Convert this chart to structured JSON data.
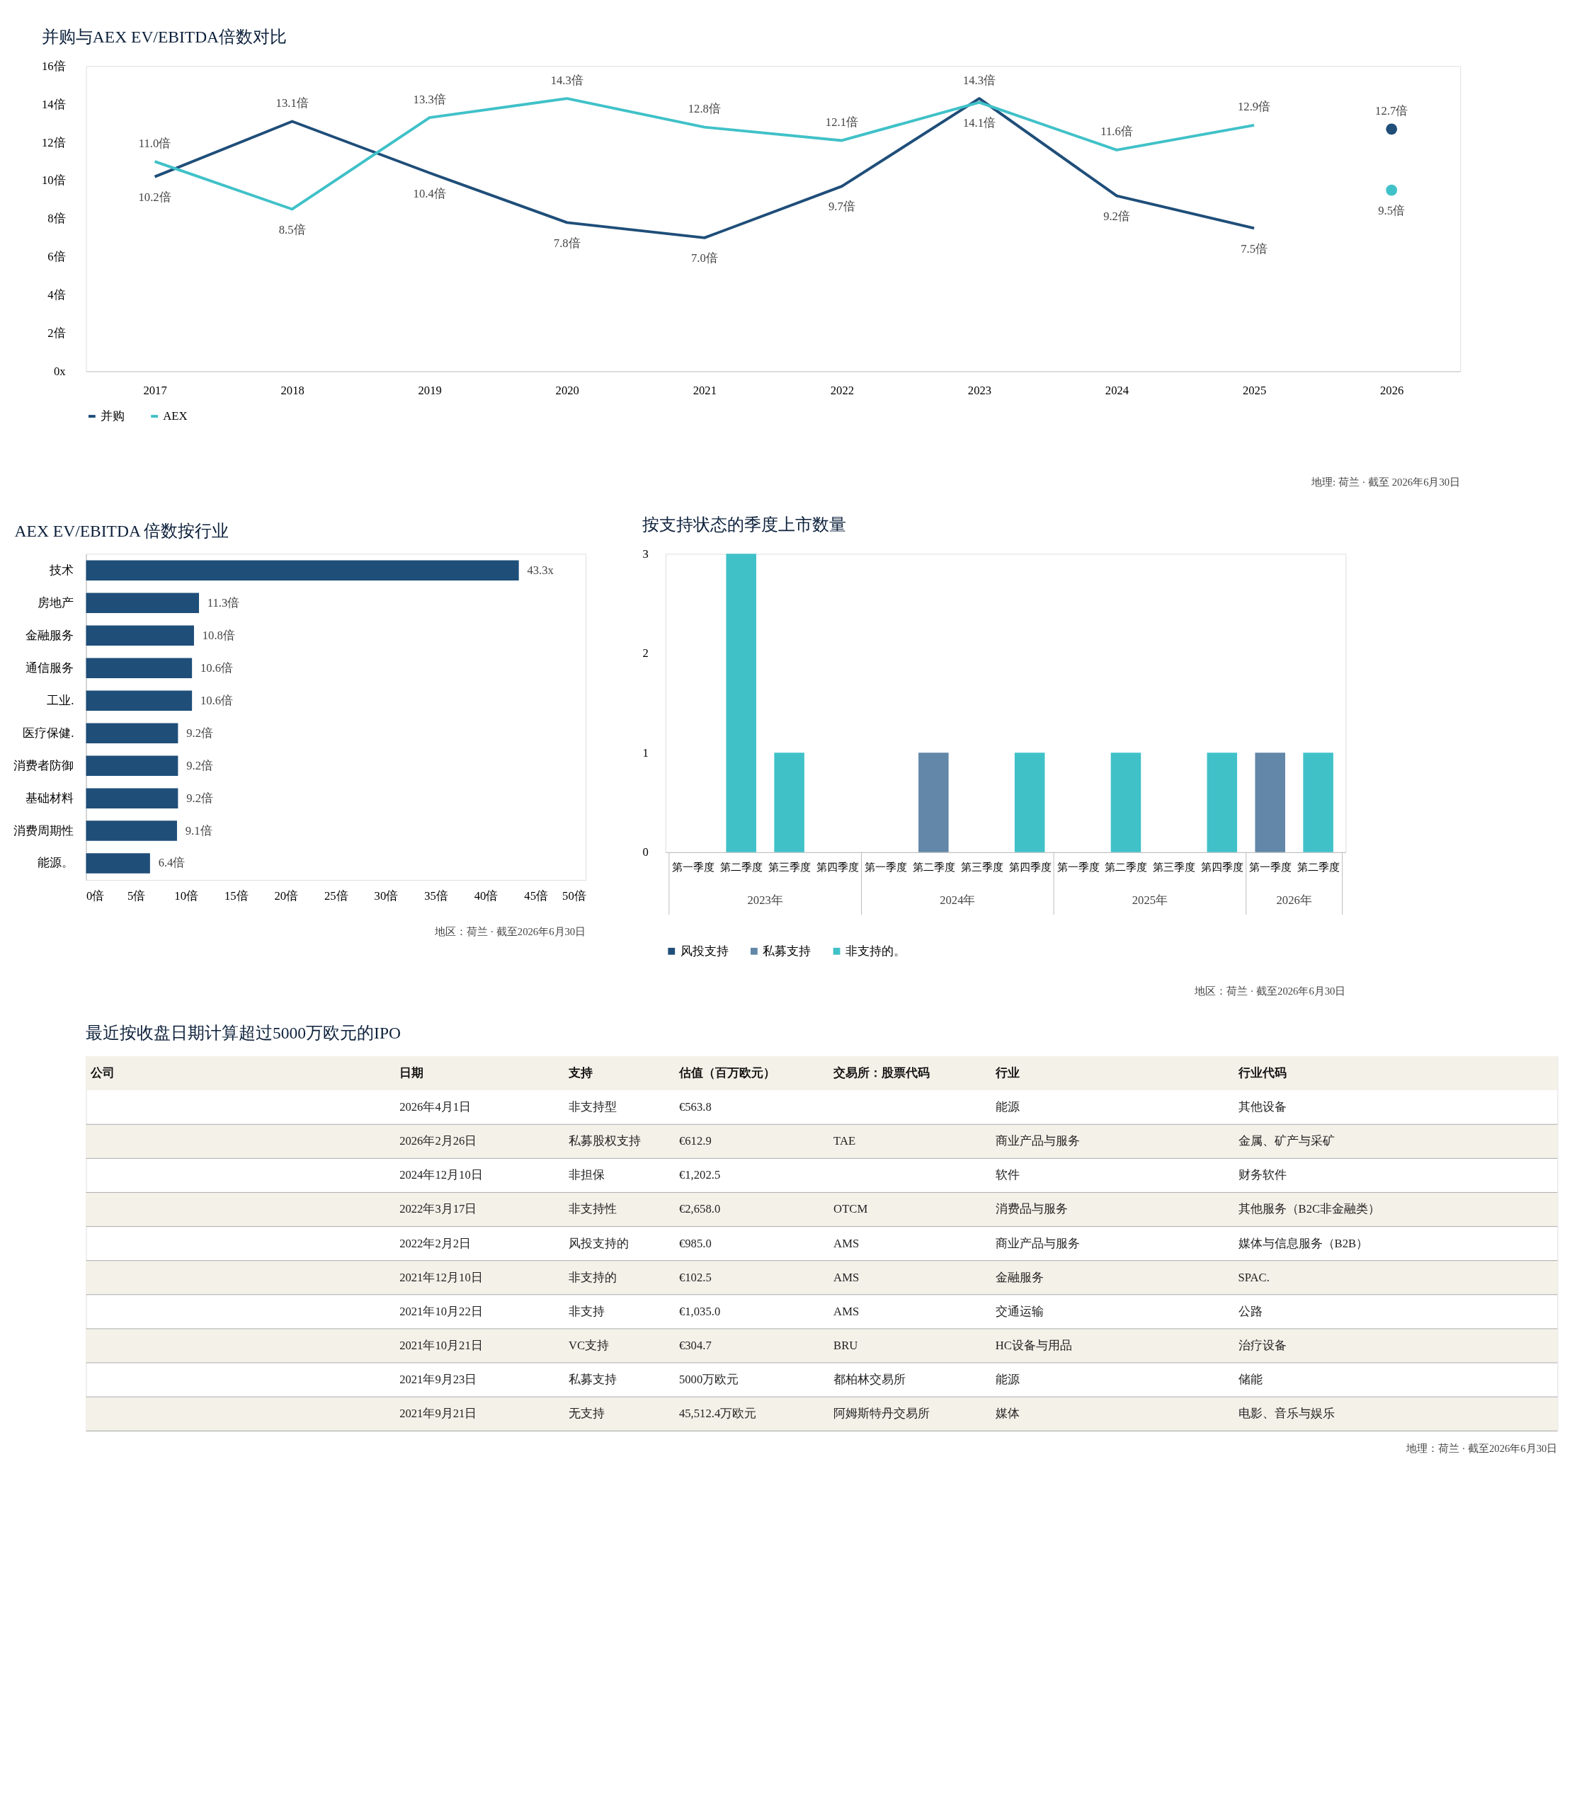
{
  "chart_data": [
    {
      "type": "line",
      "title": "并购与AEX EV/EBITDA倍数对比",
      "categories": [
        "2017",
        "2018",
        "2019",
        "2020",
        "2021",
        "2022",
        "2023",
        "2024",
        "2025",
        "2026"
      ],
      "series": [
        {
          "name": "并购",
          "color": "#1f4e79",
          "values": [
            10.2,
            13.1,
            10.4,
            7.8,
            7.0,
            9.7,
            14.3,
            9.2,
            7.5,
            null
          ],
          "value_labels": [
            "10.2倍",
            "13.1倍",
            "10.4倍",
            "7.8倍",
            "7.0倍",
            "9.7倍",
            "14.3倍",
            "9.2倍",
            "7.5倍",
            null
          ]
        },
        {
          "name": "AEX",
          "color": "#40c1c8",
          "values": [
            11.0,
            8.5,
            13.3,
            14.3,
            12.8,
            12.1,
            14.1,
            11.6,
            12.9,
            null
          ],
          "value_labels": [
            "11.0倍",
            "8.5倍",
            "13.3倍",
            "14.3倍",
            "12.8倍",
            "12.1倍",
            "14.1倍",
            "11.6倍",
            "12.9倍",
            null
          ]
        },
        {
          "type": "scatter",
          "marker": "circle",
          "color": "#1f4e79",
          "values": [
            null,
            null,
            null,
            null,
            null,
            null,
            null,
            null,
            null,
            12.7
          ],
          "value_labels": [
            null,
            null,
            null,
            null,
            null,
            null,
            null,
            null,
            null,
            "12.7倍"
          ]
        },
        {
          "type": "scatter",
          "marker": "circle",
          "color": "#40c1c8",
          "values": [
            null,
            null,
            null,
            null,
            null,
            null,
            null,
            null,
            null,
            9.5
          ],
          "value_labels": [
            null,
            null,
            null,
            null,
            null,
            null,
            null,
            null,
            null,
            "9.5倍"
          ]
        }
      ],
      "ylim": [
        0,
        16
      ],
      "yticks": [
        {
          "value": 0,
          "label": "0x"
        },
        {
          "value": 2,
          "label": "2倍"
        },
        {
          "value": 4,
          "label": "4倍"
        },
        {
          "value": 6,
          "label": "6倍"
        },
        {
          "value": 8,
          "label": "8倍"
        },
        {
          "value": 10,
          "label": "10倍"
        },
        {
          "value": 12,
          "label": "12倍"
        },
        {
          "value": 14,
          "label": "14倍"
        },
        {
          "value": 16,
          "label": "16倍"
        }
      ],
      "legend": "bottom",
      "annotations": [
        "地理: 荷兰 · 截至 2026年6月30日"
      ]
    },
    {
      "type": "bar",
      "orientation": "horizontal",
      "title": "AEX EV/EBITDA 倍数按行业",
      "categories": [
        "技术",
        "房地产",
        "金融服务",
        "通信服务",
        "工业.",
        "医疗保健.",
        "消费者防御",
        "基础材料",
        "消费周期性",
        "能源。"
      ],
      "values": [
        43.3,
        11.3,
        10.8,
        10.6,
        10.6,
        9.2,
        9.2,
        9.2,
        9.1,
        6.4
      ],
      "value_labels": [
        "43.3x",
        "11.3倍",
        "10.8倍",
        "10.6倍",
        "10.6倍",
        "9.2倍",
        "9.2倍",
        "9.2倍",
        "9.1倍",
        "6.4倍"
      ],
      "color": "#1f4e79",
      "xlim": [
        0,
        50
      ],
      "xticks": [
        {
          "value": 0,
          "label": "0倍"
        },
        {
          "value": 5,
          "label": "5倍"
        },
        {
          "value": 10,
          "label": "10倍"
        },
        {
          "value": 15,
          "label": "15倍"
        },
        {
          "value": 20,
          "label": "20倍"
        },
        {
          "value": 25,
          "label": "25倍"
        },
        {
          "value": 30,
          "label": "30倍"
        },
        {
          "value": 35,
          "label": "35倍"
        },
        {
          "value": 40,
          "label": "40倍"
        },
        {
          "value": 45,
          "label": "45倍"
        },
        {
          "value": 50,
          "label": "50倍"
        }
      ],
      "annotations": [
        "地区：荷兰 · 截至2026年6月30日"
      ]
    },
    {
      "type": "bar",
      "stacked": true,
      "title": "按支持状态的季度上市数量",
      "categories": [
        "第一季度",
        "第二季度",
        "第三季度",
        "第四季度",
        "第一季度",
        "第二季度",
        "第三季度",
        "第四季度",
        "第一季度",
        "第二季度",
        "第三季度",
        "第四季度",
        "第一季度",
        "第二季度"
      ],
      "series": [
        {
          "name": "风投支持",
          "color": "#1f4e79",
          "values": [
            null,
            null,
            null,
            null,
            null,
            null,
            null,
            null,
            null,
            null,
            null,
            null,
            null,
            null
          ]
        },
        {
          "name": "私募支持",
          "color": "#6287a8",
          "values": [
            null,
            null,
            null,
            null,
            null,
            1,
            null,
            null,
            null,
            null,
            null,
            null,
            1,
            null
          ]
        },
        {
          "name": "非支持的。",
          "color": "#40c1c8",
          "values": [
            null,
            3,
            1,
            null,
            null,
            null,
            null,
            1,
            null,
            1,
            null,
            1,
            null,
            1
          ]
        }
      ],
      "ylim": [
        0,
        3
      ],
      "yticks": [
        0,
        1,
        2,
        3
      ],
      "legend": "bottom",
      "annotations": [
        "2023年",
        "2024年",
        "2025年",
        "2026年",
        "地区：荷兰 · 截至2026年6月30日"
      ]
    },
    {
      "type": "other",
      "title": "最近按收盘日期计算超过5000万欧元的IPO",
      "categories": [
        "公司",
        "日期",
        "支持",
        "估值（百万欧元）",
        "交易所：股票代码",
        "行业",
        "行业代码"
      ],
      "cell_labels": [
        [
          null,
          "2026年4月1日",
          "非支持型",
          "€563.8",
          null,
          "能源",
          "其他设备"
        ],
        [
          null,
          "2026年2月26日",
          "私募股权支持",
          "€612.9",
          "TAE",
          "商业产品与服务",
          "金属、矿产与采矿"
        ],
        [
          null,
          "2024年12月10日",
          "非担保",
          "€1,202.5",
          null,
          "软件",
          "财务软件"
        ],
        [
          null,
          "2022年3月17日",
          "非支持性",
          "€2,658.0",
          "OTCM",
          "消费品与服务",
          "其他服务（B2C非金融类）"
        ],
        [
          null,
          "2022年2月2日",
          "风投支持的",
          "€985.0",
          "AMS",
          "商业产品与服务",
          "媒体与信息服务（B2B）"
        ],
        [
          null,
          "2021年12月10日",
          "非支持的",
          "€102.5",
          "AMS",
          "金融服务",
          "SPAC."
        ],
        [
          null,
          "2021年10月22日",
          "非支持",
          "€1,035.0",
          "AMS",
          "交通运输",
          "公路"
        ],
        [
          null,
          "2021年10月21日",
          "VC支持",
          "€304.7",
          "BRU",
          "HC设备与用品",
          "治疗设备"
        ],
        [
          null,
          "2021年9月23日",
          "私募支持",
          "5000万欧元",
          "都柏林交易所",
          "能源",
          "储能"
        ],
        [
          null,
          "2021年9月21日",
          "无支持",
          "45,512.4万欧元",
          "阿姆斯特丹交易所",
          "媒体",
          "电影、音乐与娱乐"
        ]
      ],
      "annotations": [
        "地理：荷兰 · 截至2026年6月30日"
      ]
    }
  ]
}
